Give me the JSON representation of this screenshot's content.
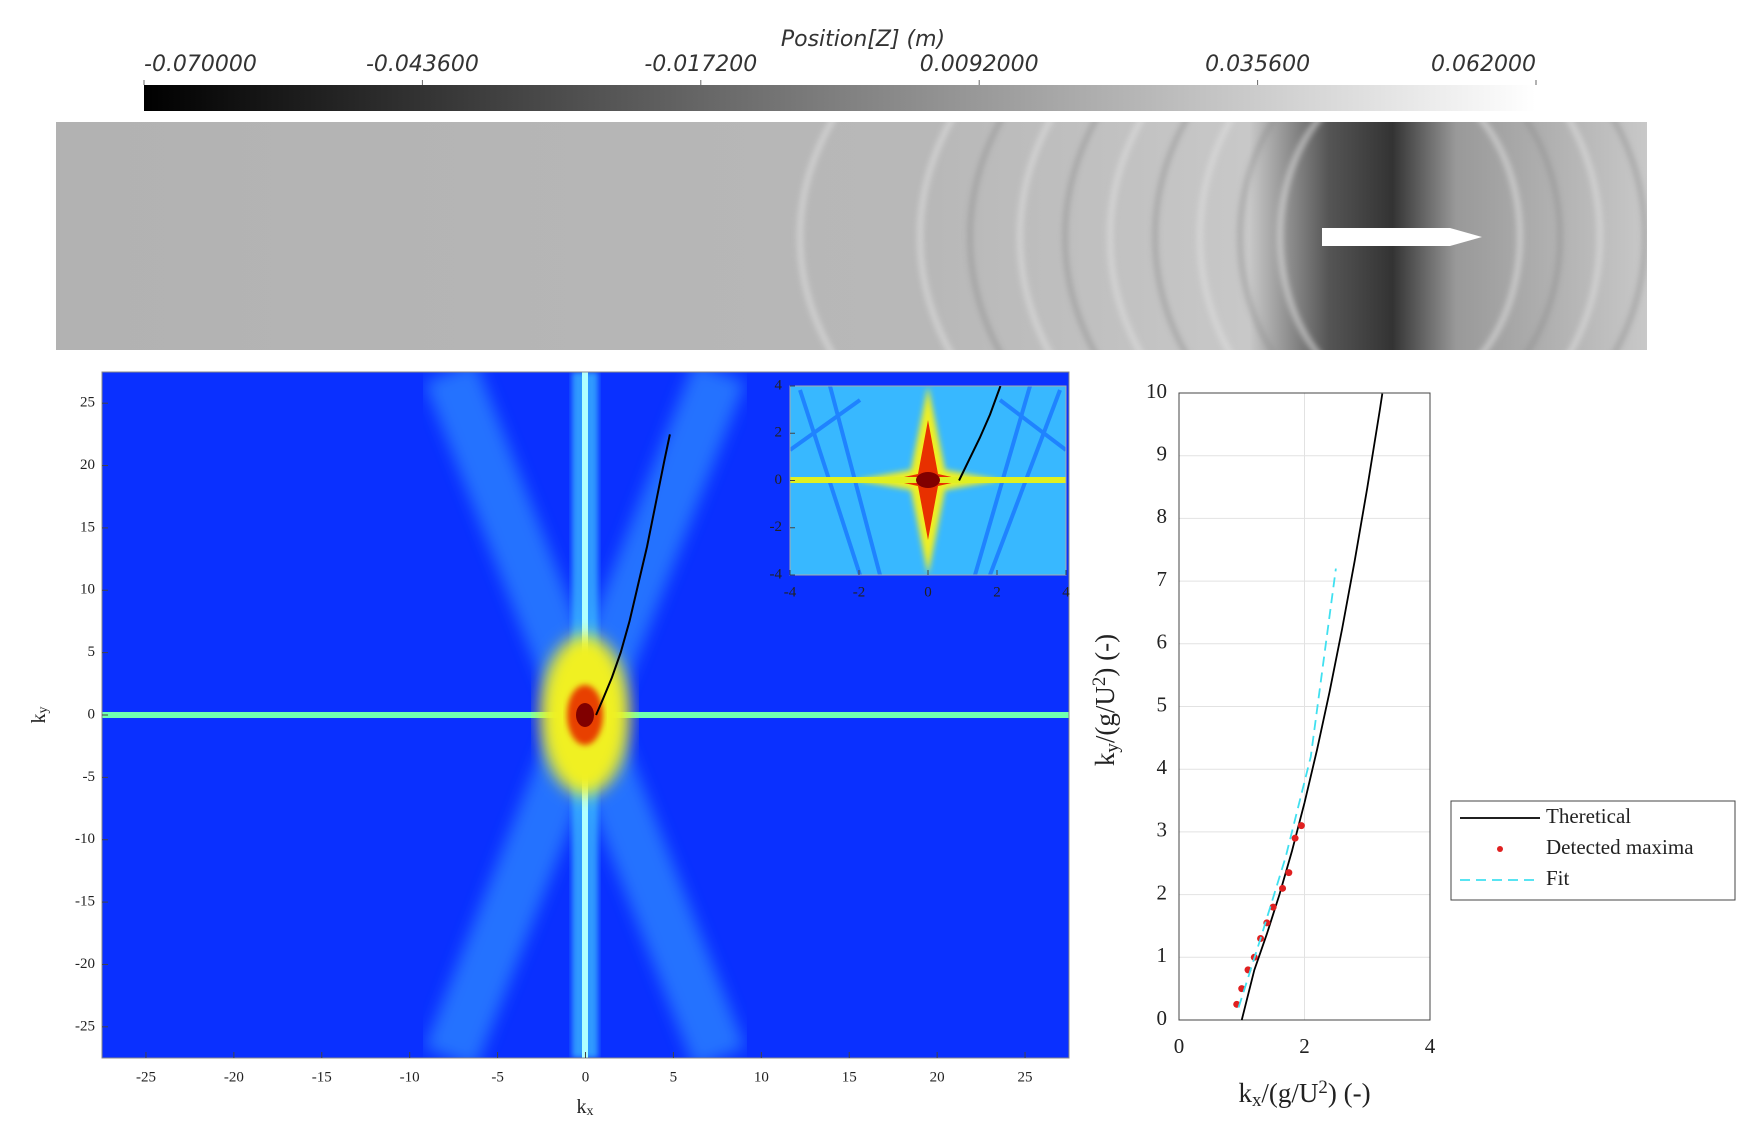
{
  "chart_data": [
    {
      "type": "colorbar",
      "title": "Position[Z] (m)",
      "clim": [
        -0.07,
        0.062
      ],
      "ticks": [
        {
          "value": -0.07,
          "label": "-0.070000"
        },
        {
          "value": -0.0436,
          "label": "-0.043600"
        },
        {
          "value": -0.0172,
          "label": "-0.017200"
        },
        {
          "value": 0.0092,
          "label": "0.0092000"
        },
        {
          "value": 0.0356,
          "label": "0.035600"
        },
        {
          "value": 0.062,
          "label": "0.062000"
        }
      ]
    },
    {
      "type": "spectrum",
      "xlabel": [
        "k",
        "x"
      ],
      "ylabel": [
        "k",
        "y"
      ],
      "xlim": [
        -27.5,
        27.5
      ],
      "xticks": [
        -25,
        -20,
        -15,
        -10,
        -5,
        0,
        5,
        10,
        15,
        20,
        25
      ],
      "ylim": [
        -27.5,
        27.5
      ],
      "yticks": [
        -25,
        -20,
        -15,
        -10,
        -5,
        0,
        5,
        10,
        15,
        20,
        25
      ],
      "series": [
        {
          "color": "#000000",
          "x": [
            0.6,
            1,
            1.5,
            2,
            2.5,
            3,
            3.5,
            4,
            4.5,
            4.8
          ],
          "y": [
            0,
            1.3,
            3,
            5,
            7.5,
            10.5,
            13.5,
            17,
            20.5,
            22.5
          ]
        }
      ],
      "inset": {
        "xlim": [
          -4,
          4
        ],
        "xticks": [
          -4,
          -2,
          0,
          2,
          4
        ],
        "ylim": [
          -4,
          4
        ],
        "yticks": [
          -4,
          -2,
          0,
          2,
          4
        ],
        "series": [
          {
            "color": "#000000",
            "x": [
              0.9,
              1.2,
              1.5,
              1.8,
              2.1
            ],
            "y": [
              0,
              0.9,
              1.8,
              2.8,
              4
            ]
          }
        ]
      }
    },
    {
      "type": "line",
      "xlabel": [
        "k",
        "x",
        "/(g/U",
        "2",
        ") (-)"
      ],
      "ylabel": [
        "k",
        "y",
        "/(g/U",
        "2",
        ") (-)"
      ],
      "xlim": [
        0,
        4
      ],
      "xticks": [
        0,
        2,
        4
      ],
      "ylim": [
        0,
        10
      ],
      "yticks": [
        0,
        1,
        2,
        3,
        4,
        5,
        6,
        7,
        8,
        9,
        10
      ],
      "grid": true,
      "legend": "outside right",
      "series": [
        {
          "name": "Theretical",
          "color": "#000000",
          "style": "solid",
          "x": [
            1,
            1.2,
            1.4,
            1.6,
            1.8,
            2,
            2.2,
            2.4,
            2.6,
            2.8,
            3,
            3.2,
            3.24
          ],
          "y": [
            0,
            0.796,
            1.372,
            1.998,
            2.694,
            3.464,
            4.311,
            5.236,
            6.24,
            7.323,
            8.485,
            9.727,
            9.99
          ]
        },
        {
          "name": "Detected maxima",
          "color": "#e02020",
          "style": "markers",
          "x": [
            0.92,
            1.0,
            1.1,
            1.2,
            1.3,
            1.4,
            1.5,
            1.65,
            1.75,
            1.85,
            1.95
          ],
          "y": [
            0.25,
            0.5,
            0.8,
            1.0,
            1.3,
            1.55,
            1.8,
            2.1,
            2.35,
            2.9,
            3.1
          ]
        },
        {
          "name": "Fit",
          "color": "#40e0f0",
          "style": "dashed",
          "x": [
            0.95,
            1.3,
            1.7,
            2.1,
            2.5
          ],
          "y": [
            0.2,
            1.3,
            2.6,
            4.2,
            7.2
          ]
        }
      ]
    }
  ]
}
